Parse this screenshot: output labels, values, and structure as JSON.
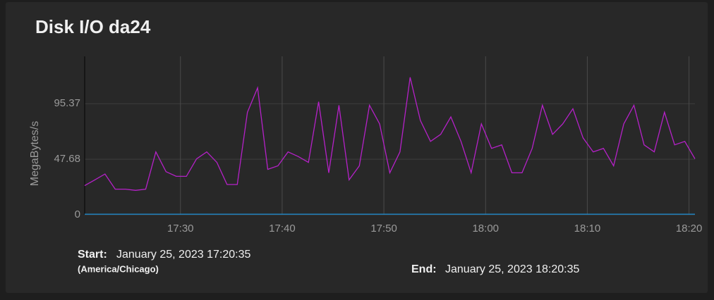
{
  "chart_data": {
    "type": "line",
    "title": "Disk I/O da24",
    "y_label": "MegaBytes/s",
    "x": [
      "17:20:35",
      "17:21:35",
      "17:22:35",
      "17:23:35",
      "17:24:35",
      "17:25:35",
      "17:26:35",
      "17:27:35",
      "17:28:35",
      "17:29:35",
      "17:30:35",
      "17:31:35",
      "17:32:35",
      "17:33:35",
      "17:34:35",
      "17:35:35",
      "17:36:35",
      "17:37:35",
      "17:38:35",
      "17:39:35",
      "17:40:35",
      "17:41:35",
      "17:42:35",
      "17:43:35",
      "17:44:35",
      "17:45:35",
      "17:46:35",
      "17:47:35",
      "17:48:35",
      "17:49:35",
      "17:50:35",
      "17:51:35",
      "17:52:35",
      "17:53:35",
      "17:54:35",
      "17:55:35",
      "17:56:35",
      "17:57:35",
      "17:58:35",
      "17:59:35",
      "18:00:35",
      "18:01:35",
      "18:02:35",
      "18:03:35",
      "18:04:35",
      "18:05:35",
      "18:06:35",
      "18:07:35",
      "18:08:35",
      "18:09:35",
      "18:10:35",
      "18:11:35",
      "18:12:35",
      "18:13:35",
      "18:14:35",
      "18:15:35",
      "18:16:35",
      "18:17:35",
      "18:18:35",
      "18:19:35",
      "18:20:35"
    ],
    "series": [
      {
        "color": "#b521c8",
        "values": [
          25,
          30,
          35,
          22,
          22,
          21,
          22,
          54,
          37,
          33,
          33,
          48,
          54,
          45,
          26,
          26,
          88,
          109,
          39,
          42,
          54,
          50,
          45,
          97,
          36,
          94,
          30,
          42,
          94,
          78,
          36,
          54,
          118,
          81,
          63,
          69,
          84,
          63,
          36,
          78,
          57,
          60,
          36,
          36,
          57,
          94,
          69,
          78,
          91,
          66,
          54,
          57,
          42,
          78,
          94,
          60,
          54,
          88,
          60,
          63,
          48
        ]
      },
      {
        "color": "#1e88c8",
        "values": [
          0.5,
          0.5,
          0.5,
          0.5,
          0.5,
          0.5,
          0.5,
          0.5,
          0.5,
          0.5,
          0.5,
          0.5,
          0.5,
          0.5,
          0.5,
          0.5,
          0.5,
          0.5,
          0.5,
          0.5,
          0.5,
          0.5,
          0.5,
          0.5,
          0.5,
          0.5,
          0.5,
          0.5,
          0.5,
          0.5,
          0.5,
          0.5,
          0.5,
          0.5,
          0.5,
          0.5,
          0.5,
          0.5,
          0.5,
          0.5,
          0.5,
          0.5,
          0.5,
          0.5,
          0.5,
          0.5,
          0.5,
          0.5,
          0.5,
          0.5,
          0.5,
          0.5,
          0.5,
          0.5,
          0.5,
          0.5,
          0.5,
          0.5,
          0.5,
          0.5,
          0.5
        ]
      }
    ],
    "xlim": [
      "17:20:35",
      "18:20:35"
    ],
    "xticks": [
      {
        "value": "17:30:00",
        "label": "17:30"
      },
      {
        "value": "17:40:00",
        "label": "17:40"
      },
      {
        "value": "17:50:00",
        "label": "17:50"
      },
      {
        "value": "18:00:00",
        "label": "18:00"
      },
      {
        "value": "18:10:00",
        "label": "18:10"
      },
      {
        "value": "18:20:00",
        "label": "18:20"
      }
    ],
    "ylim": [
      0,
      136
    ],
    "yticks": [
      0,
      47.68,
      95.37
    ],
    "grid": true
  },
  "footer": {
    "start_label": "Start:",
    "start": "January 25, 2023 17:20:35",
    "timezone": "(America/Chicago)",
    "end_label": "End:",
    "end": "January 25, 2023 18:20:35"
  }
}
